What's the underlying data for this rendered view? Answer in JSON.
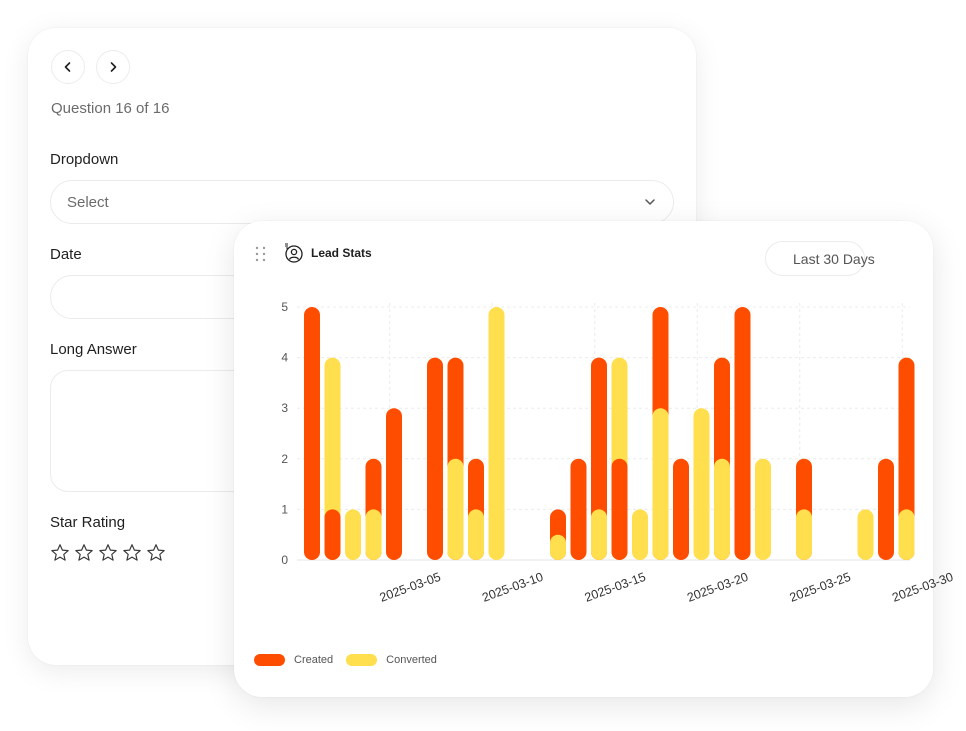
{
  "form": {
    "question_counter": "Question 16 of 16",
    "dropdown_label": "Dropdown",
    "dropdown_placeholder": "Select",
    "date_label": "Date",
    "long_answer_label": "Long Answer",
    "star_rating_label": "Star Rating",
    "star_count": 5,
    "rating_value": 0
  },
  "widget": {
    "title": "Lead Stats",
    "filter_label": "Last 30 Days",
    "colors": {
      "created": "#ff4d00",
      "converted": "#ffdf4d"
    }
  },
  "chart_data": {
    "type": "bar",
    "ylim": [
      0,
      5
    ],
    "yticks": [
      0,
      1,
      2,
      3,
      4,
      5
    ],
    "grid": true,
    "legend_position": "bottom-left",
    "x": [
      "2025-03-02",
      "2025-03-03",
      "2025-03-04",
      "2025-03-05",
      "2025-03-06",
      "2025-03-07",
      "2025-03-08",
      "2025-03-09",
      "2025-03-10",
      "2025-03-11",
      "2025-03-12",
      "2025-03-13",
      "2025-03-14",
      "2025-03-15",
      "2025-03-16",
      "2025-03-17",
      "2025-03-18",
      "2025-03-19",
      "2025-03-20",
      "2025-03-21",
      "2025-03-22",
      "2025-03-23",
      "2025-03-24",
      "2025-03-25",
      "2025-03-26",
      "2025-03-27",
      "2025-03-28",
      "2025-03-29",
      "2025-03-30",
      "2025-03-31"
    ],
    "xtick_labels": [
      "2025-03-05",
      "2025-03-10",
      "2025-03-15",
      "2025-03-20",
      "2025-03-25",
      "2025-03-30"
    ],
    "series": [
      {
        "name": "Created",
        "values": [
          5,
          1,
          0,
          2,
          3,
          0,
          4,
          4,
          2,
          0,
          0,
          0,
          1,
          2,
          4,
          2,
          0,
          5,
          2,
          0,
          4,
          5,
          0,
          0,
          2,
          0,
          0,
          0,
          2,
          4
        ]
      },
      {
        "name": "Converted",
        "values": [
          0,
          4,
          1,
          1,
          0,
          0,
          0,
          2,
          1,
          5,
          0,
          0,
          0.5,
          0,
          1,
          4,
          1,
          3,
          0,
          3,
          2,
          0,
          2,
          0,
          1,
          0,
          0,
          1,
          0,
          1
        ]
      }
    ]
  }
}
